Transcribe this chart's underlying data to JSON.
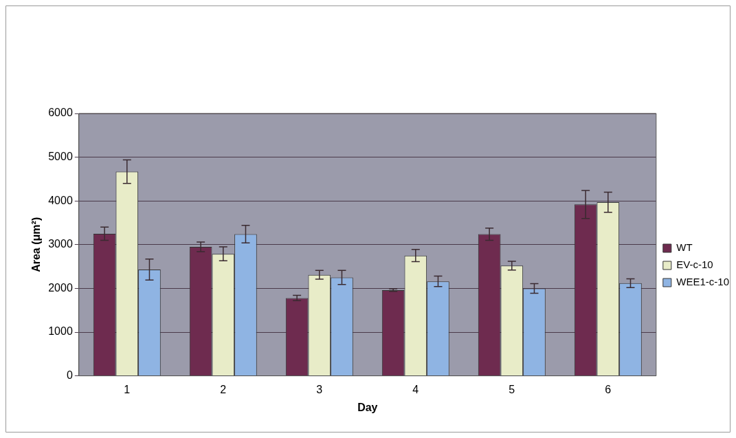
{
  "chart_data": {
    "type": "bar",
    "xlabel": "Day",
    "ylabel": "Area (μm²)",
    "categories": [
      "1",
      "2",
      "3",
      "4",
      "5",
      "6"
    ],
    "series": [
      {
        "name": "WT",
        "color": "#6e2b4f",
        "values": [
          3250,
          2950,
          1780,
          1960,
          3240,
          3920
        ],
        "errors": [
          150,
          110,
          60,
          30,
          140,
          320
        ]
      },
      {
        "name": "EV-c-10",
        "color": "#e8ecc8",
        "values": [
          4670,
          2790,
          2310,
          2750,
          2520,
          3970
        ],
        "errors": [
          270,
          160,
          100,
          140,
          100,
          230
        ]
      },
      {
        "name": "WEE1-c-10",
        "color": "#8fb4e3",
        "values": [
          2430,
          3240,
          2250,
          2160,
          2000,
          2120
        ],
        "errors": [
          240,
          200,
          160,
          120,
          110,
          100
        ]
      }
    ],
    "ylim": [
      0,
      6000
    ],
    "yticks": [
      0,
      1000,
      2000,
      3000,
      4000,
      5000,
      6000
    ],
    "grid": "y",
    "legend": "right"
  }
}
